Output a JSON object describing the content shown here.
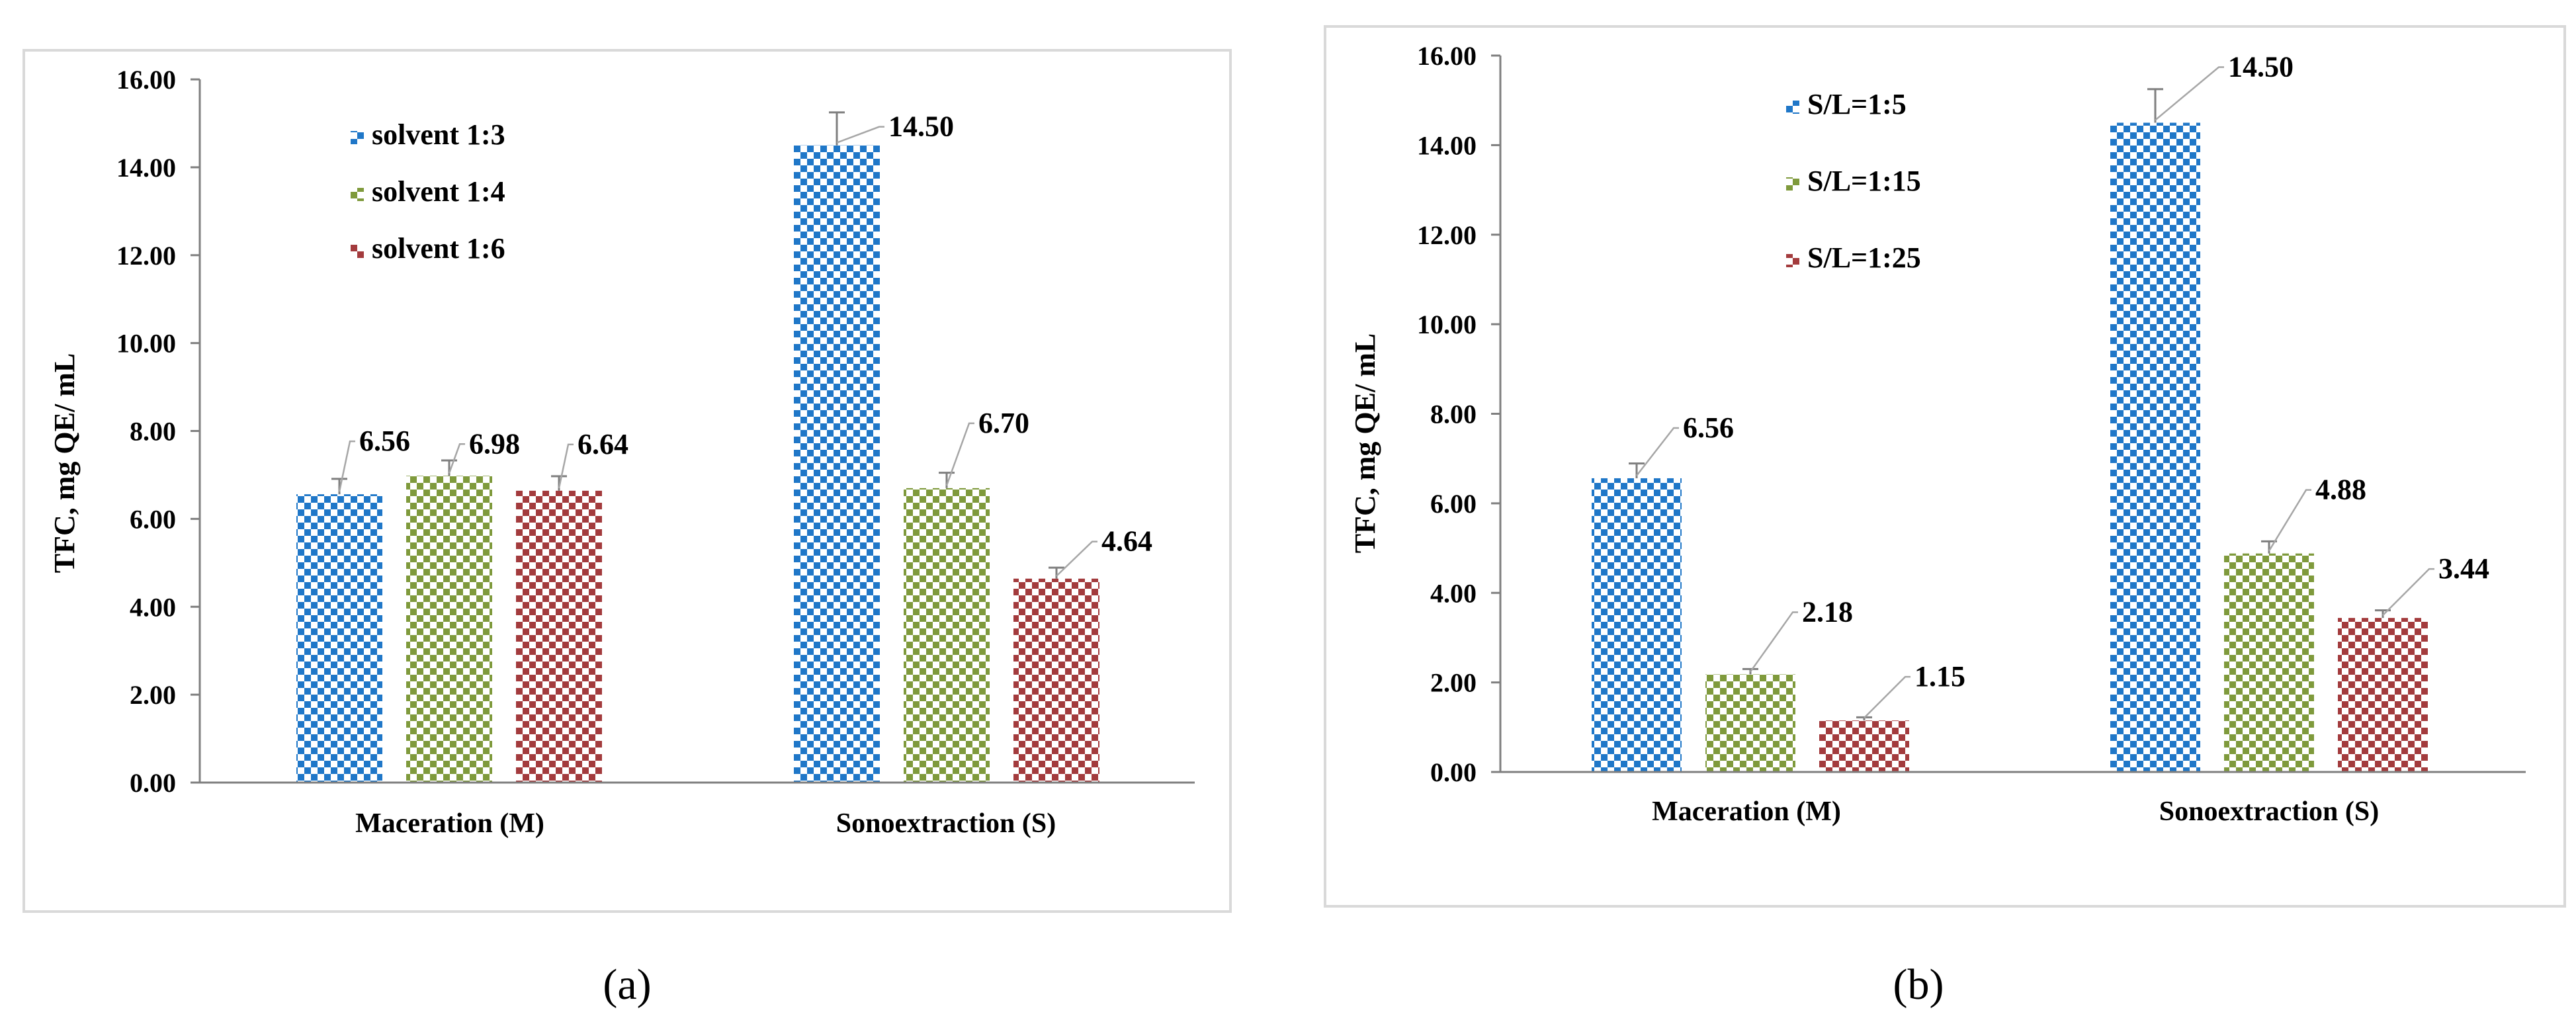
{
  "colors": {
    "blue": "#1f77c8",
    "green": "#7f9a3c",
    "red": "#a33b3d",
    "axis": "#7f7f7f",
    "frame": "#d9d9d9",
    "leader": "#a6a6a6"
  },
  "chart_data": [
    {
      "id": "a",
      "type": "bar",
      "caption": "(a)",
      "title": "",
      "xlabel": "",
      "ylabel": "TFC, mg QE/ mL",
      "ylim": [
        0,
        16
      ],
      "ytick_step": 2,
      "yticks": [
        "0.00",
        "2.00",
        "4.00",
        "6.00",
        "8.00",
        "10.00",
        "12.00",
        "14.00",
        "16.00"
      ],
      "categories": [
        "Maceration (M)",
        "Sonoextraction (S)"
      ],
      "legend_position": "top-left",
      "series": [
        {
          "name": "solvent 1:3",
          "color": "blue",
          "values": [
            6.56,
            14.5
          ],
          "errors": [
            0.35,
            0.75
          ],
          "labels": [
            "6.56",
            "14.50"
          ]
        },
        {
          "name": "solvent 1:4",
          "color": "green",
          "values": [
            6.98,
            6.7
          ],
          "errors": [
            0.35,
            0.35
          ],
          "labels": [
            "6.98",
            "6.70"
          ]
        },
        {
          "name": "solvent 1:6",
          "color": "red",
          "values": [
            6.64,
            4.64
          ],
          "errors": [
            0.33,
            0.25
          ],
          "labels": [
            "6.64",
            "4.64"
          ]
        }
      ]
    },
    {
      "id": "b",
      "type": "bar",
      "caption": "(b)",
      "title": "",
      "xlabel": "",
      "ylabel": "TFC, mg QE/ mL",
      "ylim": [
        0,
        16
      ],
      "ytick_step": 2,
      "yticks": [
        "0.00",
        "2.00",
        "4.00",
        "6.00",
        "8.00",
        "10.00",
        "12.00",
        "14.00",
        "16.00"
      ],
      "categories": [
        "Maceration (M)",
        "Sonoextraction (S)"
      ],
      "legend_position": "top-left",
      "series": [
        {
          "name": "S/L=1:5",
          "color": "blue",
          "values": [
            6.56,
            14.5
          ],
          "errors": [
            0.33,
            0.75
          ],
          "labels": [
            "6.56",
            "14.50"
          ]
        },
        {
          "name": "S/L=1:15",
          "color": "green",
          "values": [
            2.18,
            4.88
          ],
          "errors": [
            0.12,
            0.27
          ],
          "labels": [
            "2.18",
            "4.88"
          ]
        },
        {
          "name": "S/L=1:25",
          "color": "red",
          "values": [
            1.15,
            3.44
          ],
          "errors": [
            0.07,
            0.17
          ],
          "labels": [
            "1.15",
            "3.44"
          ]
        }
      ]
    }
  ]
}
